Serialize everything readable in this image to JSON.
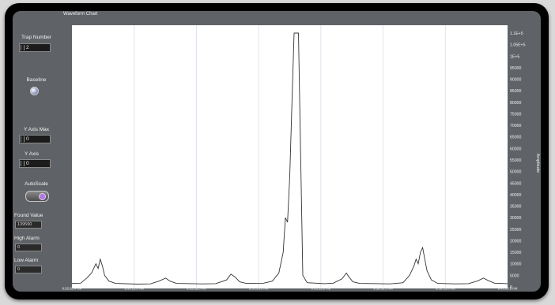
{
  "chart_data": {
    "type": "line",
    "title": "Waveform Chart",
    "xlabel": "",
    "ylabel": "Amplitude",
    "x_tick_labels": [
      [
        "9:28:20.4 AM",
        "5/6/2010"
      ],
      [
        "9:30:15.0 AM",
        "5/6/2010"
      ],
      [
        "9:31:55.0 AM",
        "5/6/2010"
      ],
      [
        "9:33:35.0 AM",
        "5/6/2010"
      ],
      [
        "9:35:15.0 AM",
        "5/6/2010"
      ],
      [
        "9:36:55.0 AM",
        "5/6/2010"
      ],
      [
        "9:38:35.0 AM",
        "5/6/2010"
      ],
      [
        "9:40:00.5 AM",
        "5/6/2010"
      ]
    ],
    "y_tick_labels": [
      "0",
      "5000",
      "10000",
      "15000",
      "20000",
      "25000",
      "30000",
      "35000",
      "40000",
      "45000",
      "50000",
      "55000",
      "60000",
      "65000",
      "70000",
      "75000",
      "80000",
      "85000",
      "90000",
      "95000",
      "1E+5",
      "1.05E+5",
      "1.1E+5"
    ],
    "ylim": [
      0,
      110000
    ],
    "grid": true,
    "series": [
      {
        "color": "#333333",
        "points": [
          [
            0.0,
            1500
          ],
          [
            0.02,
            1600
          ],
          [
            0.035,
            4000
          ],
          [
            0.045,
            6000
          ],
          [
            0.055,
            10000
          ],
          [
            0.06,
            8000
          ],
          [
            0.065,
            12000
          ],
          [
            0.07,
            9000
          ],
          [
            0.075,
            5000
          ],
          [
            0.085,
            2500
          ],
          [
            0.1,
            1500
          ],
          [
            0.15,
            1200
          ],
          [
            0.18,
            1300
          ],
          [
            0.2,
            2500
          ],
          [
            0.215,
            3800
          ],
          [
            0.225,
            2500
          ],
          [
            0.24,
            1500
          ],
          [
            0.3,
            1300
          ],
          [
            0.33,
            1400
          ],
          [
            0.355,
            3000
          ],
          [
            0.365,
            5500
          ],
          [
            0.375,
            4200
          ],
          [
            0.385,
            2200
          ],
          [
            0.4,
            1500
          ],
          [
            0.44,
            1600
          ],
          [
            0.46,
            2500
          ],
          [
            0.475,
            6000
          ],
          [
            0.485,
            15000
          ],
          [
            0.49,
            30000
          ],
          [
            0.495,
            28000
          ],
          [
            0.5,
            48000
          ],
          [
            0.505,
            80000
          ],
          [
            0.51,
            110000
          ],
          [
            0.52,
            110000
          ],
          [
            0.53,
            5000
          ],
          [
            0.54,
            1800
          ],
          [
            0.58,
            1400
          ],
          [
            0.6,
            1600
          ],
          [
            0.62,
            3500
          ],
          [
            0.63,
            6000
          ],
          [
            0.635,
            4500
          ],
          [
            0.645,
            2200
          ],
          [
            0.66,
            1500
          ],
          [
            0.73,
            1300
          ],
          [
            0.76,
            1800
          ],
          [
            0.775,
            5000
          ],
          [
            0.785,
            9000
          ],
          [
            0.79,
            12000
          ],
          [
            0.795,
            10000
          ],
          [
            0.8,
            15000
          ],
          [
            0.805,
            17000
          ],
          [
            0.81,
            12000
          ],
          [
            0.815,
            7000
          ],
          [
            0.825,
            3000
          ],
          [
            0.84,
            1500
          ],
          [
            0.88,
            1300
          ],
          [
            0.91,
            1400
          ],
          [
            0.93,
            2500
          ],
          [
            0.945,
            3800
          ],
          [
            0.955,
            2800
          ],
          [
            0.97,
            1600
          ],
          [
            1.0,
            1400
          ]
        ]
      }
    ]
  },
  "ui": {
    "chart_title": "Waveform Chart",
    "trap_number_label": "Trap Number",
    "trap_number_value": "2",
    "baseline_label": "Baseline",
    "y_axis_max_label": "Y Axis Max",
    "y_axis_max_value": "0",
    "y_axis_label": "Y Axis",
    "y_axis_value": "0",
    "autoscale_label": "AutoScale",
    "found_value_label": "Found Value",
    "found_value": "139590",
    "high_alarm_label": "High Alarm",
    "high_alarm_value": "0",
    "low_alarm_label": "Low Alarm",
    "low_alarm_value": "0"
  }
}
